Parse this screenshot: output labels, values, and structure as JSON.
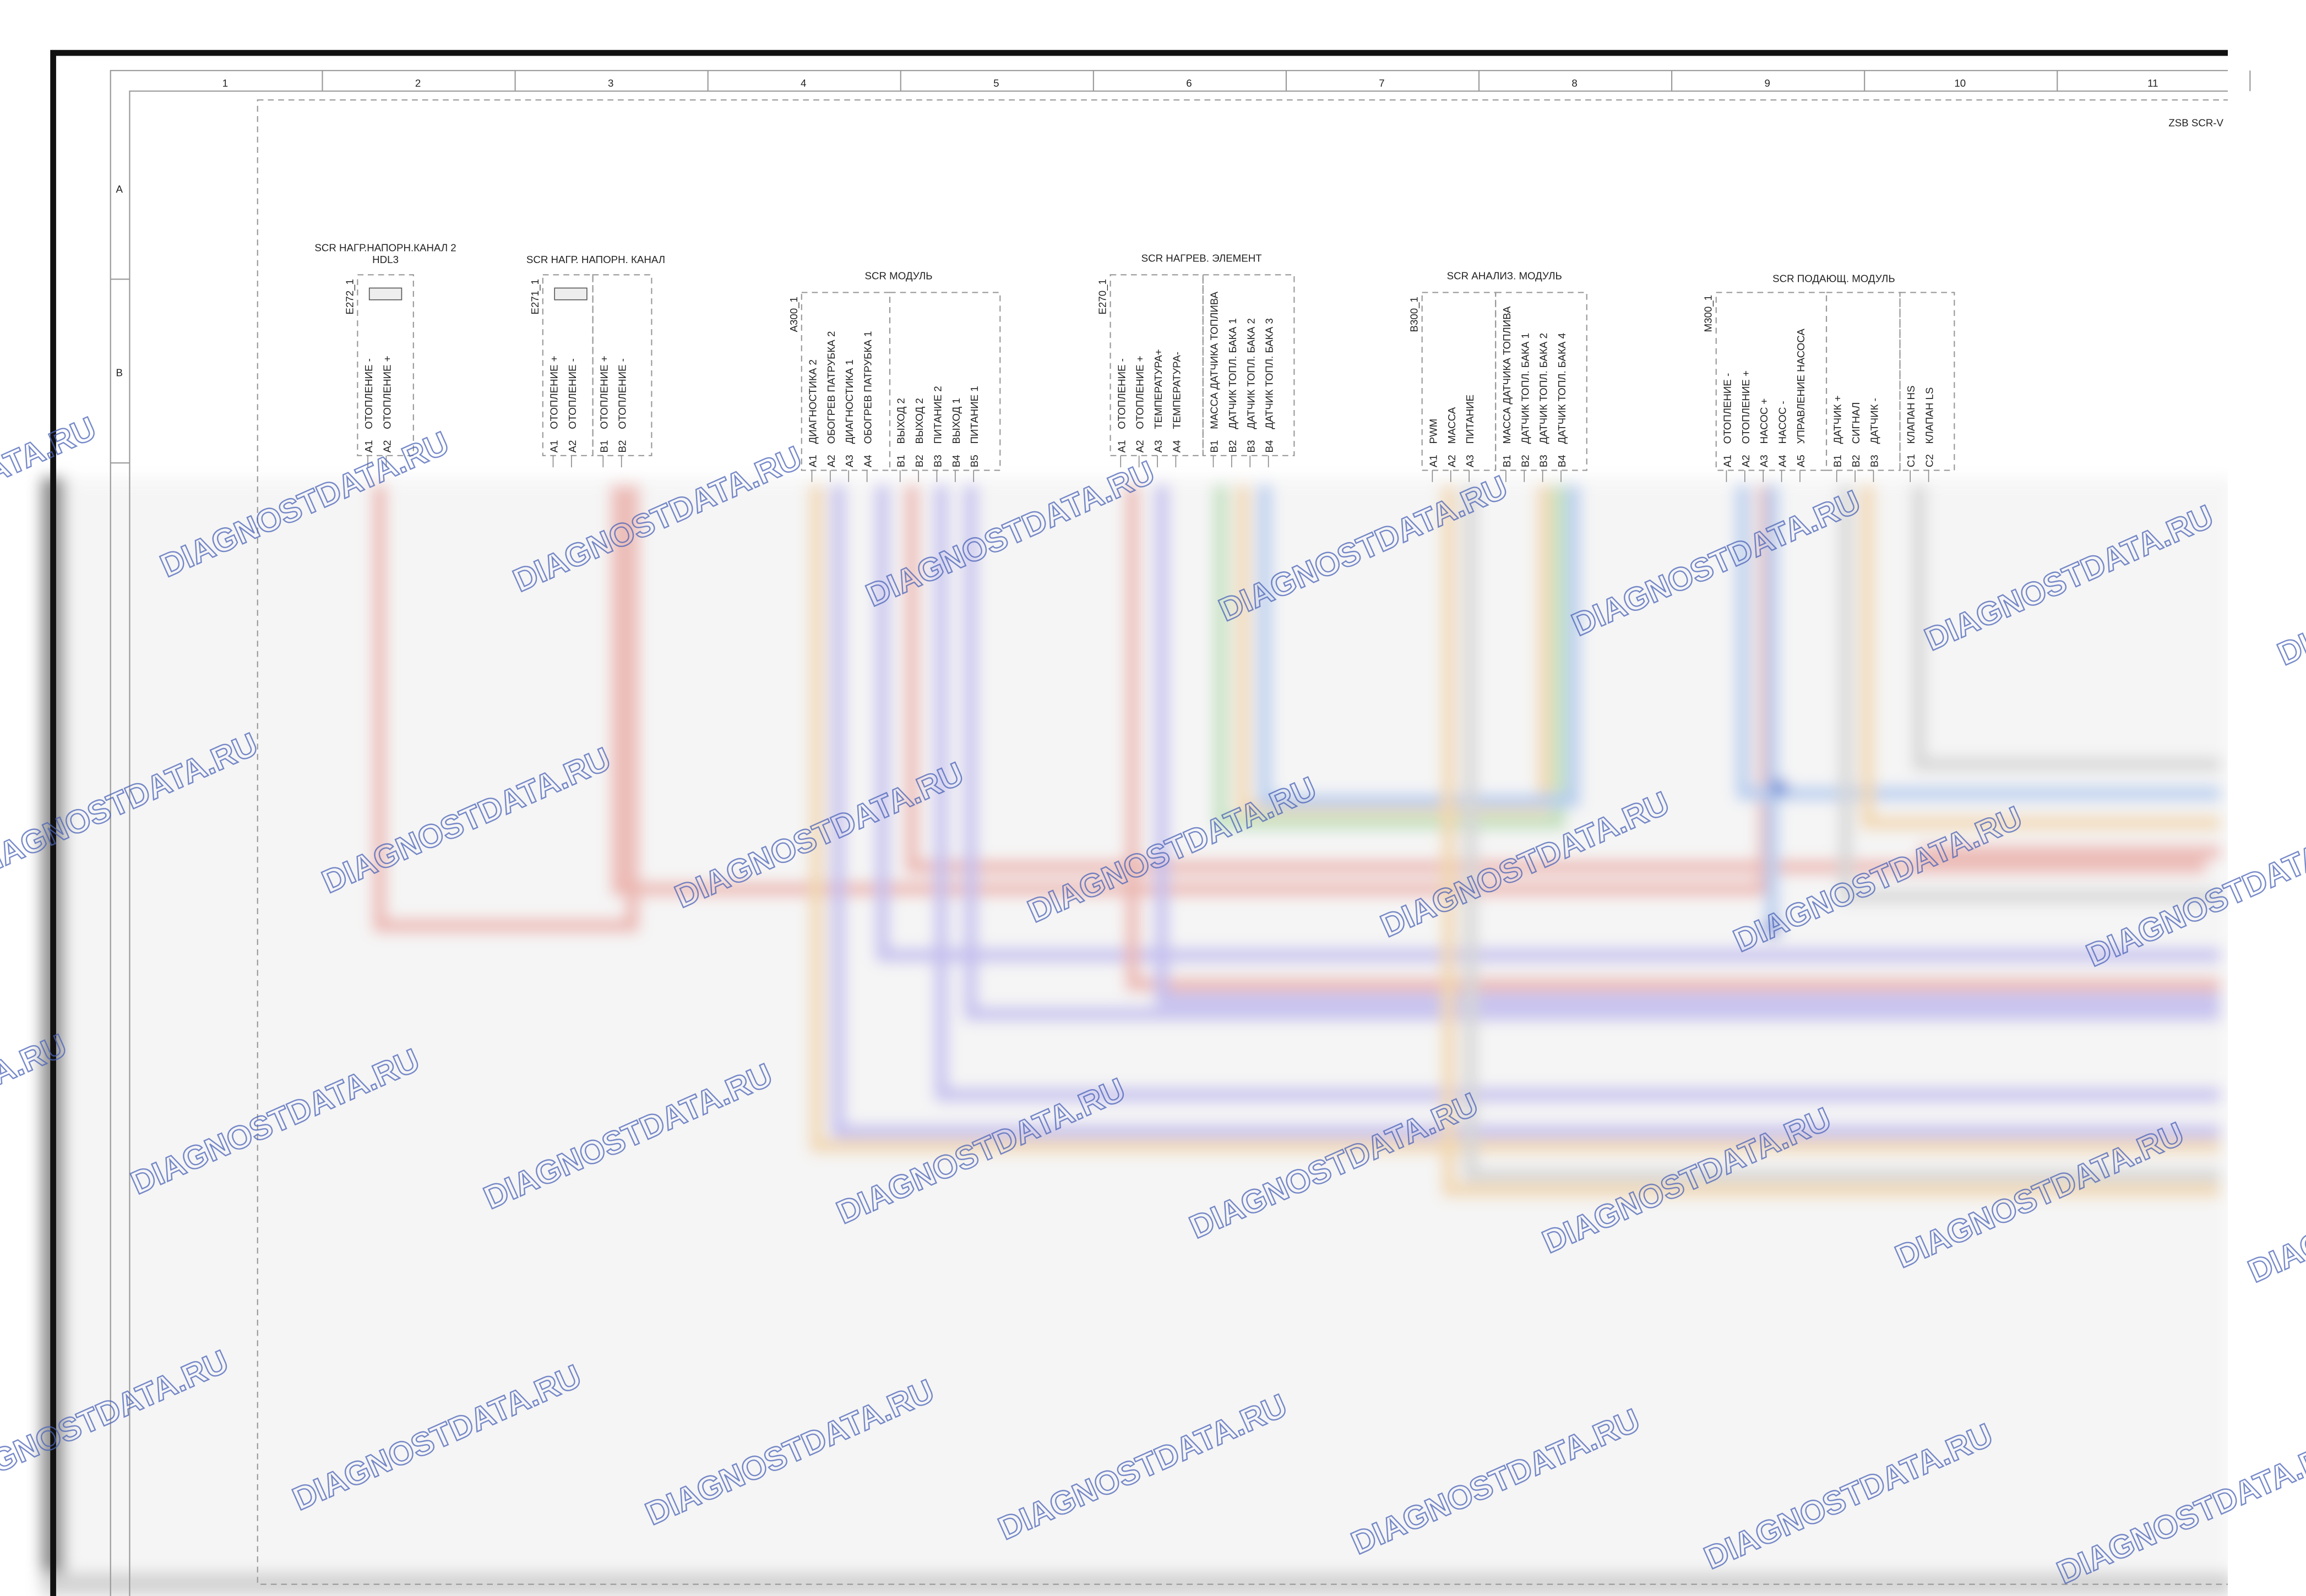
{
  "grid": {
    "columns": [
      "1",
      "2",
      "3",
      "4",
      "5",
      "6",
      "7",
      "8",
      "9",
      "10",
      "11"
    ],
    "rows": [
      "A",
      "B"
    ]
  },
  "sheet_title": "ZSB SCR-V",
  "watermark": "DIAGNOSTDATA.RU",
  "components": [
    {
      "code": "E272_1",
      "title": [
        "SCR НАГР.НАПОРН.КАНАЛ 2",
        "HDL3"
      ],
      "groups": [
        [
          {
            "id": "A1",
            "label": "ОТОПЛЕНИЕ -"
          },
          {
            "id": "A2",
            "label": "ОТОПЛЕНИЕ +"
          }
        ]
      ]
    },
    {
      "code": "E271_1",
      "title": [
        "SCR НАГР. НАПОРН. КАНАЛ"
      ],
      "groups": [
        [
          {
            "id": "A1",
            "label": "ОТОПЛЕНИЕ +"
          },
          {
            "id": "A2",
            "label": "ОТОПЛЕНИЕ -"
          }
        ],
        [
          {
            "id": "B1",
            "label": "ОТОПЛЕНИЕ +"
          },
          {
            "id": "B2",
            "label": "ОТОПЛЕНИЕ -"
          }
        ]
      ]
    },
    {
      "code": "A300_1",
      "title": [
        "SCR МОДУЛЬ"
      ],
      "groups": [
        [
          {
            "id": "A1",
            "label": "ДИАГНОСТИКА 2"
          },
          {
            "id": "A2",
            "label": "ОБОГРЕВ ПАТРУБКА 2"
          },
          {
            "id": "A3",
            "label": "ДИАГНОСТИКА 1"
          },
          {
            "id": "A4",
            "label": "ОБОГРЕВ ПАТРУБКА 1"
          }
        ],
        [
          {
            "id": "B1",
            "label": "ВЫХОД 2"
          },
          {
            "id": "B2",
            "label": "ВЫХОД 2"
          },
          {
            "id": "B3",
            "label": "ПИТАНИЕ 2"
          },
          {
            "id": "B4",
            "label": "ВЫХОД 1"
          },
          {
            "id": "B5",
            "label": "ПИТАНИЕ 1"
          }
        ]
      ]
    },
    {
      "code": "E270_1",
      "title": [
        "SCR НАГРЕВ. ЭЛЕМЕНТ"
      ],
      "groups": [
        [
          {
            "id": "A1",
            "label": "ОТОПЛЕНИЕ -"
          },
          {
            "id": "A2",
            "label": "ОТОПЛЕНИЕ +"
          },
          {
            "id": "A3",
            "label": "ТЕМПЕРАТУРА+"
          },
          {
            "id": "A4",
            "label": "ТЕМПЕРАТУРА-"
          }
        ],
        [
          {
            "id": "B1",
            "label": "МАССА ДАТЧИКА ТОПЛИВА"
          },
          {
            "id": "B2",
            "label": "ДАТЧИК ТОПЛ. БАКА 1"
          },
          {
            "id": "B3",
            "label": "ДАТЧИК ТОПЛ. БАКА 2"
          },
          {
            "id": "B4",
            "label": "ДАТЧИК ТОПЛ. БАКА 3"
          }
        ]
      ]
    },
    {
      "code": "B300_1",
      "title": [
        "SCR АНАЛИЗ. МОДУЛЬ"
      ],
      "groups": [
        [
          {
            "id": "A1",
            "label": "PWM"
          },
          {
            "id": "A2",
            "label": "МАССА"
          },
          {
            "id": "A3",
            "label": "ПИТАНИЕ"
          }
        ],
        [
          {
            "id": "B1",
            "label": "МАССА ДАТЧИКА ТОПЛИВА"
          },
          {
            "id": "B2",
            "label": "ДАТЧИК ТОПЛ. БАКА 1"
          },
          {
            "id": "B3",
            "label": "ДАТЧИК ТОПЛ. БАКА 2"
          },
          {
            "id": "B4",
            "label": "ДАТЧИК ТОПЛ. БАКА 4"
          }
        ]
      ]
    },
    {
      "code": "M300_1",
      "title": [
        "SCR ПОДАЮЩ. МОДУЛЬ"
      ],
      "groups": [
        [
          {
            "id": "A1",
            "label": "ОТОПЛЕНИЕ -"
          },
          {
            "id": "A2",
            "label": "ОТОПЛЕНИЕ +"
          },
          {
            "id": "A3",
            "label": "НАСОС +"
          },
          {
            "id": "A4",
            "label": "НАСОС -"
          },
          {
            "id": "A5",
            "label": "УПРАВЛЕНИЕ НАСОСА"
          }
        ],
        [
          {
            "id": "B1",
            "label": "ДАТЧИК +"
          },
          {
            "id": "B2",
            "label": "СИГНАЛ"
          },
          {
            "id": "B3",
            "label": "ДАТЧИК -"
          }
        ],
        [
          {
            "id": "C1",
            "label": "КЛАПАН HS"
          },
          {
            "id": "C2",
            "label": "КЛАПАН LS"
          }
        ]
      ]
    }
  ]
}
